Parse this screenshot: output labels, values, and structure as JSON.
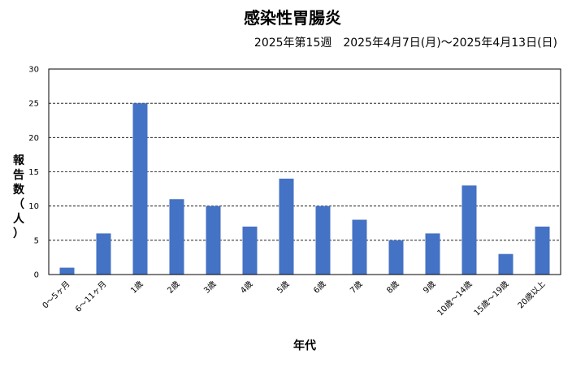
{
  "chart_data": {
    "type": "bar",
    "title": "感染性胃腸炎",
    "subtitle": "2025年第15週　2025年4月7日(月)～2025年4月13日(日)",
    "xlabel": "年代",
    "ylabel": "報告数（人）",
    "ylabel_chars": [
      "報",
      "告",
      "数",
      "（",
      "人",
      "）"
    ],
    "ylim": [
      0,
      30
    ],
    "yticks": [
      "0",
      "5",
      "10",
      "15",
      "20",
      "25",
      "30"
    ],
    "grid": true,
    "categories": [
      "0～5ヶ月",
      "6～11ヶ月",
      "1歳",
      "2歳",
      "3歳",
      "4歳",
      "5歳",
      "6歳",
      "7歳",
      "8歳",
      "9歳",
      "10歳～14歳",
      "15歳～19歳",
      "20歳以上"
    ],
    "values": [
      1,
      6,
      25,
      11,
      10,
      7,
      14,
      10,
      8,
      5,
      6,
      13,
      3,
      7
    ],
    "bar_color": "#4472C4"
  }
}
